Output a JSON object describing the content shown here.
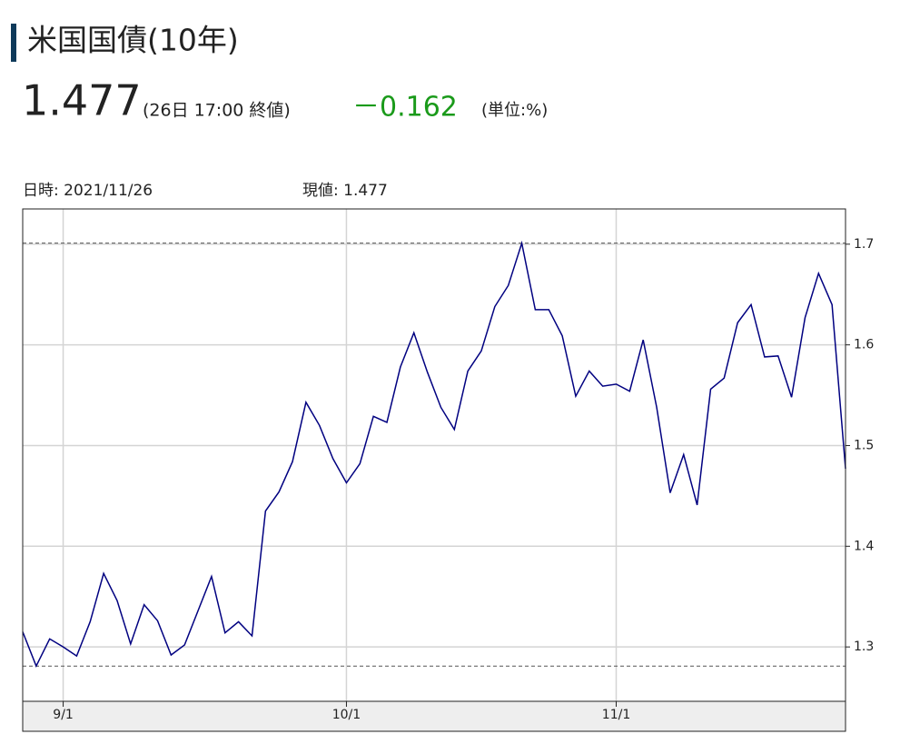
{
  "header": {
    "title": "米国国債(10年)",
    "price": "1.477",
    "time": "(26日 17:00 終値)",
    "change": "－0.162",
    "unit": "(単位:%)",
    "date_label": "日時: 2021/11/26",
    "value_label": "現値: 1.477"
  },
  "chart_data": {
    "type": "line",
    "color": "#000080",
    "grid": true,
    "values": [
      1.315,
      1.281,
      1.308,
      1.3,
      1.291,
      1.325,
      1.373,
      1.346,
      1.303,
      1.342,
      1.326,
      1.292,
      1.302,
      1.336,
      1.37,
      1.314,
      1.325,
      1.311,
      1.435,
      1.454,
      1.484,
      1.543,
      1.52,
      1.487,
      1.463,
      1.482,
      1.529,
      1.523,
      1.578,
      1.612,
      1.573,
      1.538,
      1.516,
      1.574,
      1.594,
      1.638,
      1.659,
      1.701,
      1.635,
      1.635,
      1.609,
      1.549,
      1.574,
      1.559,
      1.561,
      1.554,
      1.605,
      1.538,
      1.453,
      1.491,
      1.441,
      1.556,
      1.567,
      1.622,
      1.64,
      1.588,
      1.589,
      1.548,
      1.627,
      1.671,
      1.64,
      1.477
    ],
    "xlim": [
      0,
      61
    ],
    "xticks": [
      {
        "value": 3,
        "label": "9/1"
      },
      {
        "value": 24,
        "label": "10/1"
      },
      {
        "value": 44,
        "label": "11/1"
      }
    ],
    "ylim": [
      1.246,
      1.735
    ],
    "yticks": [
      1.3,
      1.4,
      1.5,
      1.6,
      1.7
    ],
    "hlines": [
      1.701,
      1.281
    ]
  }
}
